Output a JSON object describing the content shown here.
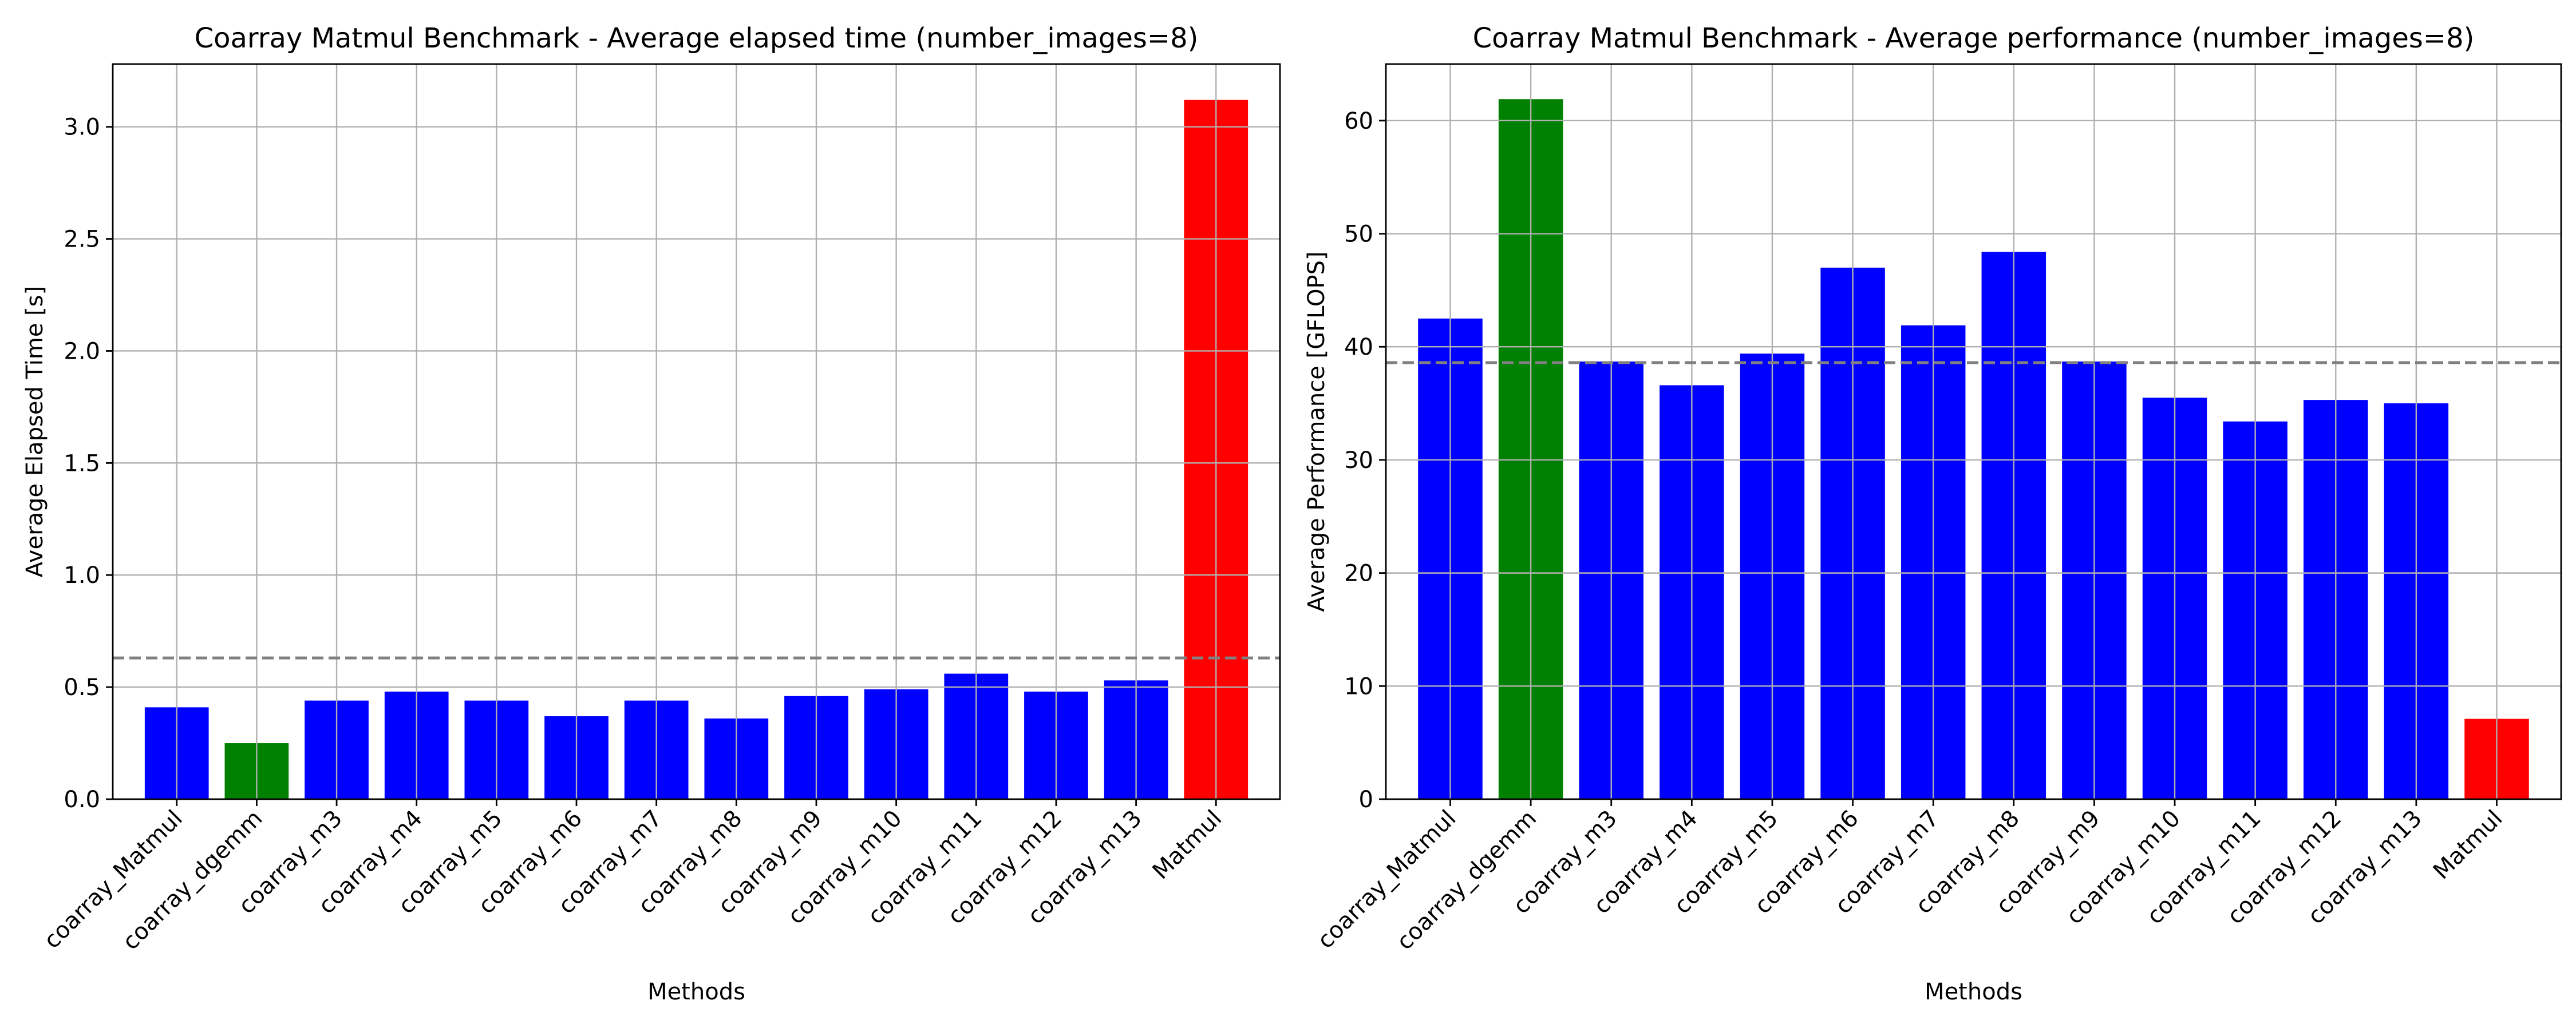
{
  "chart_data": [
    {
      "type": "bar",
      "title": "Coarray Matmul Benchmark - Average elapsed time (number_images=8)",
      "xlabel": "Methods",
      "ylabel": "Average Elapsed Time [s]",
      "categories": [
        "coarray_Matmul",
        "coarray_dgemm",
        "coarray_m3",
        "coarray_m4",
        "coarray_m5",
        "coarray_m6",
        "coarray_m7",
        "coarray_m8",
        "coarray_m9",
        "coarray_m10",
        "coarray_m11",
        "coarray_m12",
        "coarray_m13",
        "Matmul"
      ],
      "values": [
        0.41,
        0.25,
        0.44,
        0.48,
        0.44,
        0.37,
        0.44,
        0.36,
        0.46,
        0.49,
        0.56,
        0.48,
        0.53,
        3.12
      ],
      "bar_colors": [
        "#0000ff",
        "#008000",
        "#0000ff",
        "#0000ff",
        "#0000ff",
        "#0000ff",
        "#0000ff",
        "#0000ff",
        "#0000ff",
        "#0000ff",
        "#0000ff",
        "#0000ff",
        "#0000ff",
        "#ff0000"
      ],
      "reference_line": 0.63,
      "reference_line_color": "#808080",
      "ylim": [
        0,
        3.28
      ],
      "yticks": [
        0.0,
        0.5,
        1.0,
        1.5,
        2.0,
        2.5,
        3.0
      ],
      "ytick_labels": [
        "0.0",
        "0.5",
        "1.0",
        "1.5",
        "2.0",
        "2.5",
        "3.0"
      ],
      "grid": true
    },
    {
      "type": "bar",
      "title": "Coarray Matmul Benchmark - Average performance (number_images=8)",
      "xlabel": "Methods",
      "ylabel": "Average Performance [GFLOPS]",
      "categories": [
        "coarray_Matmul",
        "coarray_dgemm",
        "coarray_m3",
        "coarray_m4",
        "coarray_m5",
        "coarray_m6",
        "coarray_m7",
        "coarray_m8",
        "coarray_m9",
        "coarray_m10",
        "coarray_m11",
        "coarray_m12",
        "coarray_m13",
        "Matmul"
      ],
      "values": [
        42.5,
        61.9,
        38.7,
        36.6,
        39.4,
        47.0,
        41.9,
        48.4,
        38.7,
        35.5,
        33.4,
        35.3,
        35.0,
        7.1
      ],
      "bar_colors": [
        "#0000ff",
        "#008000",
        "#0000ff",
        "#0000ff",
        "#0000ff",
        "#0000ff",
        "#0000ff",
        "#0000ff",
        "#0000ff",
        "#0000ff",
        "#0000ff",
        "#0000ff",
        "#0000ff",
        "#ff0000"
      ],
      "reference_line": 38.6,
      "reference_line_color": "#808080",
      "ylim": [
        0,
        65
      ],
      "yticks": [
        0,
        10,
        20,
        30,
        40,
        50,
        60
      ],
      "ytick_labels": [
        "0",
        "10",
        "20",
        "30",
        "40",
        "50",
        "60"
      ],
      "grid": true
    }
  ]
}
